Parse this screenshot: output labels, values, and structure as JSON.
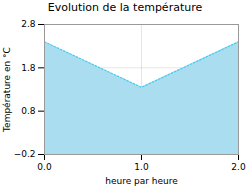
{
  "chart_data": {
    "type": "area",
    "title": "Evolution de la température",
    "xlabel": "heure par heure",
    "ylabel": "Température en °C",
    "x": [
      0,
      1,
      2
    ],
    "values": [
      2.4,
      1.35,
      2.4
    ],
    "colors": [
      "#aaddf0",
      "#44ccee"
    ],
    "line_style": "dotted",
    "xlim": [
      0,
      2
    ],
    "ylim": [
      -0.2,
      2.8
    ],
    "xticks": [
      0,
      1,
      2
    ],
    "yticks": [
      -0.2,
      0.8,
      1.8,
      2.8
    ],
    "grid": true
  }
}
